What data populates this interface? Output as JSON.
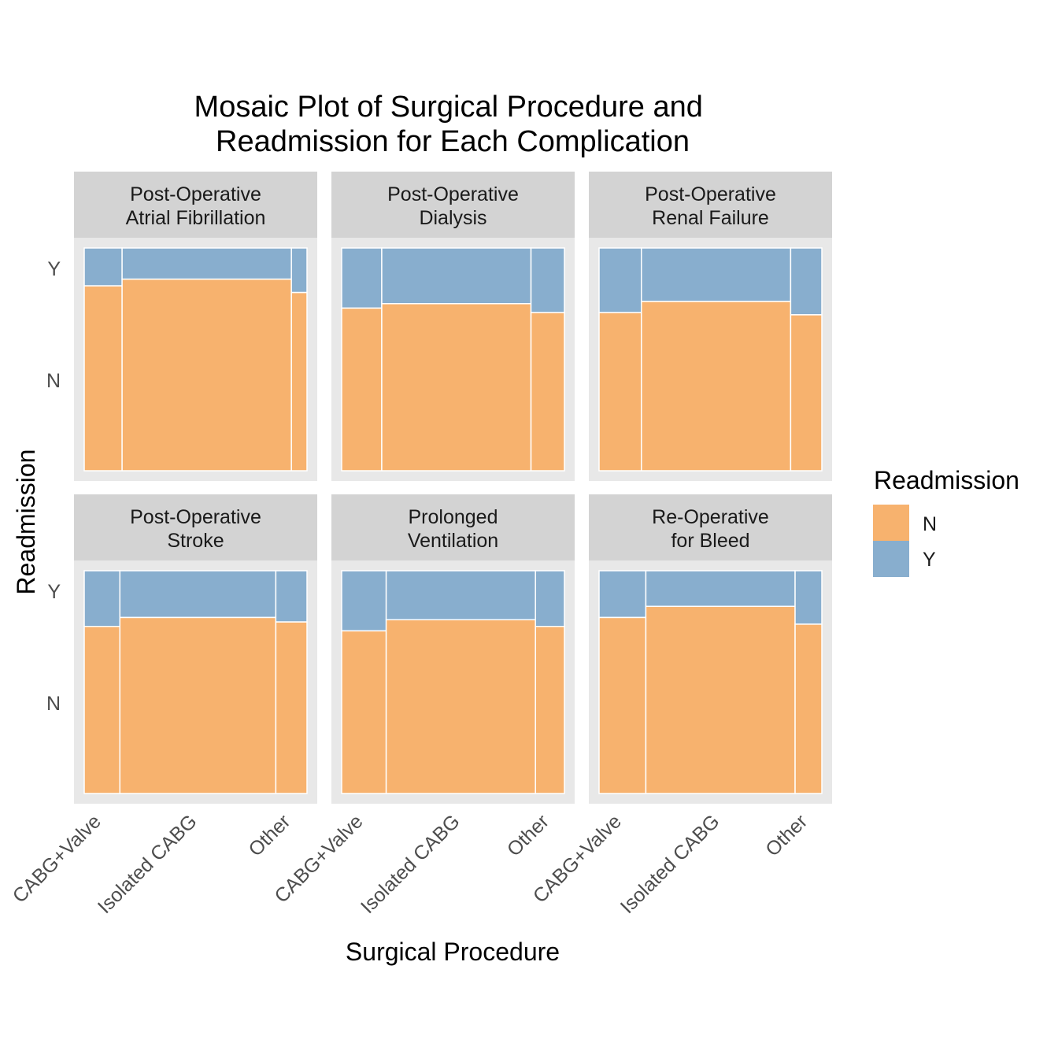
{
  "chart_data": {
    "type": "mosaic",
    "title_lines": [
      "Mosaic Plot of Surgical Procedure and",
      "Readmission for Each Complication"
    ],
    "xlabel": "Surgical Procedure",
    "ylabel": "Readmission",
    "x_categories": [
      "CABG+Valve",
      "Isolated CABG",
      "Other"
    ],
    "y_categories": [
      "Y",
      "N"
    ],
    "legend": {
      "title": "Readmission",
      "position": "right",
      "entries": [
        {
          "key": "N",
          "label": "N",
          "color": "#F7B26E"
        },
        {
          "key": "Y",
          "label": "Y",
          "color": "#88AECE"
        }
      ]
    },
    "panels": [
      {
        "title_lines": [
          "Post-Operative",
          "Atrial Fibrillation"
        ],
        "columns": [
          {
            "category": "CABG+Valve",
            "x_share": 0.17,
            "y_fraction": 0.17
          },
          {
            "category": "Isolated CABG",
            "x_share": 0.76,
            "y_fraction": 0.14
          },
          {
            "category": "Other",
            "x_share": 0.07,
            "y_fraction": 0.2
          }
        ]
      },
      {
        "title_lines": [
          "Post-Operative",
          "Dialysis"
        ],
        "columns": [
          {
            "category": "CABG+Valve",
            "x_share": 0.18,
            "y_fraction": 0.27
          },
          {
            "category": "Isolated CABG",
            "x_share": 0.67,
            "y_fraction": 0.25
          },
          {
            "category": "Other",
            "x_share": 0.15,
            "y_fraction": 0.29
          }
        ]
      },
      {
        "title_lines": [
          "Post-Operative",
          "Renal Failure"
        ],
        "columns": [
          {
            "category": "CABG+Valve",
            "x_share": 0.19,
            "y_fraction": 0.29
          },
          {
            "category": "Isolated CABG",
            "x_share": 0.67,
            "y_fraction": 0.24
          },
          {
            "category": "Other",
            "x_share": 0.14,
            "y_fraction": 0.3
          }
        ]
      },
      {
        "title_lines": [
          "Post-Operative",
          "Stroke"
        ],
        "columns": [
          {
            "category": "CABG+Valve",
            "x_share": 0.16,
            "y_fraction": 0.25
          },
          {
            "category": "Isolated CABG",
            "x_share": 0.7,
            "y_fraction": 0.21
          },
          {
            "category": "Other",
            "x_share": 0.14,
            "y_fraction": 0.23
          }
        ]
      },
      {
        "title_lines": [
          "Prolonged",
          "Ventilation"
        ],
        "columns": [
          {
            "category": "CABG+Valve",
            "x_share": 0.2,
            "y_fraction": 0.27
          },
          {
            "category": "Isolated CABG",
            "x_share": 0.67,
            "y_fraction": 0.22
          },
          {
            "category": "Other",
            "x_share": 0.13,
            "y_fraction": 0.25
          }
        ]
      },
      {
        "title_lines": [
          "Re-Operative",
          "for Bleed"
        ],
        "columns": [
          {
            "category": "CABG+Valve",
            "x_share": 0.21,
            "y_fraction": 0.21
          },
          {
            "category": "Isolated CABG",
            "x_share": 0.67,
            "y_fraction": 0.16
          },
          {
            "category": "Other",
            "x_share": 0.12,
            "y_fraction": 0.24
          }
        ]
      }
    ]
  }
}
